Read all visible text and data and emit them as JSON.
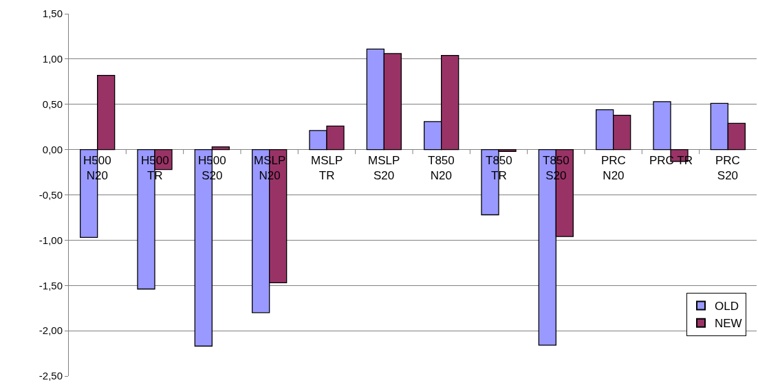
{
  "chart_data": {
    "type": "bar",
    "categories": [
      "H500\nN20",
      "H500\nTR",
      "H500\nS20",
      "MSLP\nN20",
      "MSLP\nTR",
      "MSLP\nS20",
      "T850\nN20",
      "T850\nTR",
      "T850\nS20",
      "PRC\nN20",
      "PRC TR",
      "PRC\nS20"
    ],
    "series": [
      {
        "name": "OLD",
        "color": "#9999ff",
        "values": [
          -0.97,
          -1.54,
          -2.17,
          -1.8,
          0.21,
          1.11,
          0.31,
          -0.72,
          -2.16,
          0.44,
          0.53,
          0.51
        ]
      },
      {
        "name": "NEW",
        "color": "#993366",
        "values": [
          0.82,
          -0.22,
          0.03,
          -1.47,
          0.26,
          1.06,
          1.04,
          -0.02,
          -0.96,
          0.38,
          -0.13,
          0.29
        ]
      }
    ],
    "ylim": [
      -2.5,
      1.5
    ],
    "yticks": [
      {
        "value": -2.5,
        "label": "-2,50"
      },
      {
        "value": -2.0,
        "label": "-2,00"
      },
      {
        "value": -1.5,
        "label": "-1,50"
      },
      {
        "value": -1.0,
        "label": "-1,00"
      },
      {
        "value": -0.5,
        "label": "-0,50"
      },
      {
        "value": 0.0,
        "label": "0,00"
      },
      {
        "value": 0.5,
        "label": "0,50"
      },
      {
        "value": 1.0,
        "label": "1,00"
      },
      {
        "value": 1.5,
        "label": "1,50"
      }
    ],
    "grid": "y",
    "legend": "bottom right"
  }
}
